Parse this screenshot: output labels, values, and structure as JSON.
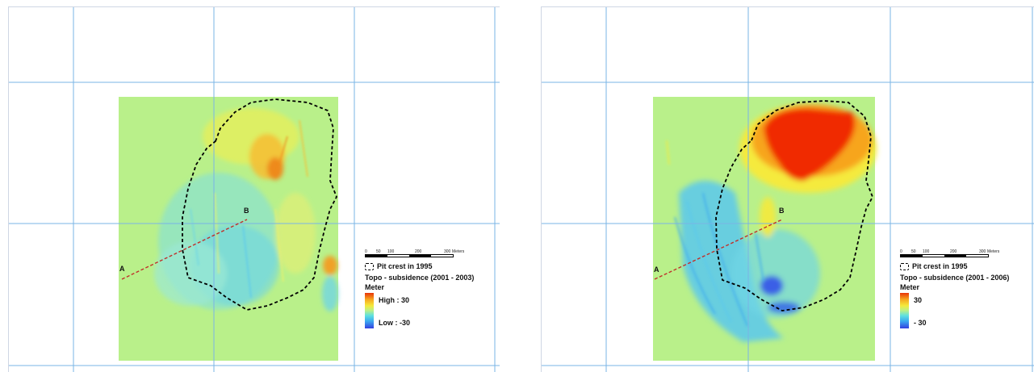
{
  "left_panel": {
    "points": {
      "a": "A",
      "b": "B"
    },
    "legend": {
      "scale_ticks": [
        "0",
        "50",
        "100",
        "200",
        "300"
      ],
      "scale_unit": "Meters",
      "pit_label": "Pit crest in 1995",
      "layer_title": "Topo - subsidence (2001 - 2003)",
      "unit_label": "Meter",
      "high_label": "High : 30",
      "low_label": "Low : -30"
    }
  },
  "right_panel": {
    "points": {
      "a": "A",
      "b": "B"
    },
    "legend": {
      "scale_ticks": [
        "0",
        "50",
        "100",
        "200",
        "300"
      ],
      "scale_unit": "Meters",
      "pit_label": "Pit crest in 1995",
      "layer_title": "Topo - subsidence (2001 - 2006)",
      "unit_label": "Meter",
      "high_label": "30",
      "low_label": "- 30"
    }
  },
  "colors": {
    "background": "#b9f08a",
    "grid": "#7ab4e6",
    "high": "#e8340a",
    "low": "#3440e0",
    "profile_line": "#c0302a"
  }
}
